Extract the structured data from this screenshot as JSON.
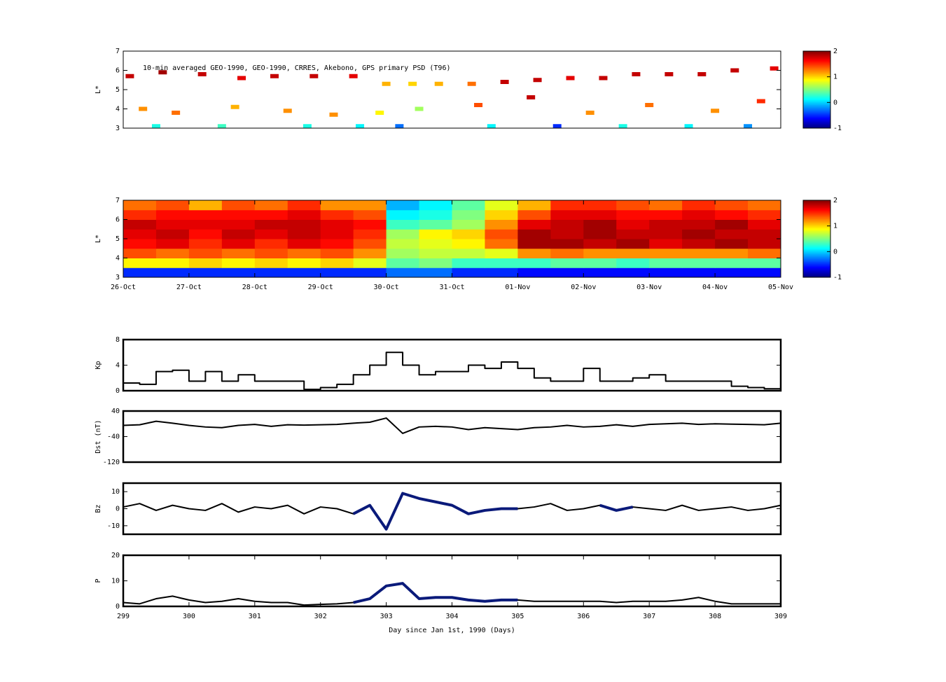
{
  "chart_data": [
    {
      "type": "scatter",
      "title": "10-min averaged GEO-1990, GEO-1990, CRRES, Akebono, GPS  primary PSD (T96)",
      "ylabel": "L*",
      "xlim": [
        299,
        309
      ],
      "ylim": [
        3,
        7
      ],
      "yticks": [
        3,
        4,
        5,
        6,
        7
      ],
      "colormap": "jet",
      "zlim": [
        -1,
        2
      ],
      "zticks": [
        -1,
        0,
        1,
        2
      ],
      "x": [
        299.1,
        299.6,
        300.2,
        300.8,
        301.3,
        301.9,
        302.5,
        303.0,
        303.4,
        303.8,
        304.3,
        304.8,
        305.3,
        305.8,
        306.3,
        306.8,
        307.3,
        307.8,
        308.3,
        308.9,
        299.3,
        299.8,
        300.7,
        301.5,
        302.2,
        302.9,
        303.5,
        304.4,
        305.2,
        306.1,
        307.0,
        308.0,
        308.7,
        299.5,
        300.5,
        301.8,
        302.6,
        303.2,
        304.6,
        305.6,
        306.6,
        307.6,
        308.5
      ],
      "y": [
        5.7,
        5.9,
        5.8,
        5.6,
        5.7,
        5.7,
        5.7,
        5.3,
        5.3,
        5.3,
        5.3,
        5.4,
        5.5,
        5.6,
        5.6,
        5.8,
        5.8,
        5.8,
        6.0,
        6.1,
        4.0,
        3.8,
        4.1,
        3.9,
        3.7,
        3.8,
        4.0,
        4.2,
        4.6,
        3.8,
        4.2,
        3.9,
        4.4,
        3.1,
        3.1,
        3.1,
        3.1,
        3.1,
        3.1,
        3.1,
        3.1,
        3.1,
        3.1
      ],
      "values": [
        1.8,
        1.9,
        1.8,
        1.7,
        1.8,
        1.8,
        1.7,
        1.1,
        1.0,
        1.1,
        1.3,
        1.8,
        1.8,
        1.7,
        1.8,
        1.8,
        1.8,
        1.8,
        1.8,
        1.7,
        1.2,
        1.3,
        1.1,
        1.2,
        1.2,
        0.9,
        0.6,
        1.4,
        1.8,
        1.2,
        1.3,
        1.2,
        1.5,
        0.2,
        0.3,
        0.2,
        0.1,
        -0.3,
        0.1,
        -0.5,
        0.2,
        0.1,
        -0.2
      ]
    },
    {
      "type": "heatmap",
      "ylabel": "L*",
      "xlim": [
        299,
        309
      ],
      "ylim": [
        3,
        7
      ],
      "yticks": [
        3,
        4,
        5,
        6,
        7
      ],
      "colormap": "jet",
      "zlim": [
        -1,
        2
      ],
      "zticks": [
        -1,
        0,
        1,
        2
      ],
      "xticks": [
        {
          "value": 299,
          "label": "26-Oct"
        },
        {
          "value": 300,
          "label": "27-Oct"
        },
        {
          "value": 301,
          "label": "28-Oct"
        },
        {
          "value": 302,
          "label": "29-Oct"
        },
        {
          "value": 303,
          "label": "30-Oct"
        },
        {
          "value": 304,
          "label": "31-Oct"
        },
        {
          "value": 305,
          "label": "01-Nov"
        },
        {
          "value": 306,
          "label": "02-Nov"
        },
        {
          "value": 307,
          "label": "03-Nov"
        },
        {
          "value": 308,
          "label": "04-Nov"
        },
        {
          "value": 309,
          "label": "05-Nov"
        }
      ],
      "xbins": [
        299,
        299.5,
        300,
        300.5,
        301,
        301.5,
        302,
        302.5,
        303,
        303.5,
        304,
        304.5,
        305,
        305.5,
        306,
        306.5,
        307,
        307.5,
        308,
        308.5,
        309
      ],
      "ybins": [
        3,
        3.5,
        4,
        4.5,
        5,
        5.5,
        6,
        6.5,
        7
      ],
      "z": [
        [
          -0.5,
          -0.5,
          -0.5,
          -0.5,
          -0.5,
          -0.5,
          -0.5,
          -0.5,
          -0.3,
          -0.3,
          -0.5,
          -0.5,
          -0.6,
          -0.6,
          -0.6,
          -0.6,
          -0.6,
          -0.6,
          -0.6,
          -0.6
        ],
        [
          0.9,
          0.9,
          1.0,
          0.9,
          1.0,
          0.9,
          1.0,
          0.8,
          0.4,
          0.5,
          0.3,
          0.3,
          0.3,
          0.4,
          0.4,
          0.3,
          0.4,
          0.4,
          0.4,
          0.4
        ],
        [
          1.4,
          1.3,
          1.4,
          1.3,
          1.4,
          1.3,
          1.4,
          1.2,
          0.6,
          0.7,
          0.7,
          0.8,
          1.2,
          1.3,
          1.2,
          1.2,
          1.2,
          1.2,
          1.2,
          1.3
        ],
        [
          1.6,
          1.7,
          1.5,
          1.7,
          1.5,
          1.7,
          1.6,
          1.4,
          0.7,
          0.8,
          0.9,
          1.3,
          1.9,
          1.9,
          1.8,
          1.9,
          1.7,
          1.8,
          1.9,
          1.8
        ],
        [
          1.7,
          1.8,
          1.6,
          1.8,
          1.7,
          1.8,
          1.7,
          1.5,
          0.6,
          0.9,
          1.0,
          1.4,
          1.9,
          1.8,
          1.9,
          1.8,
          1.8,
          1.9,
          1.8,
          1.8
        ],
        [
          1.8,
          1.7,
          1.7,
          1.7,
          1.8,
          1.8,
          1.7,
          1.6,
          0.3,
          0.4,
          0.6,
          1.2,
          1.7,
          1.8,
          1.9,
          1.7,
          1.8,
          1.8,
          1.9,
          1.7
        ],
        [
          1.5,
          1.6,
          1.6,
          1.6,
          1.6,
          1.7,
          1.5,
          1.4,
          0.1,
          0.2,
          0.5,
          1.0,
          1.4,
          1.7,
          1.7,
          1.6,
          1.6,
          1.7,
          1.6,
          1.5
        ],
        [
          1.3,
          1.4,
          1.1,
          1.4,
          1.3,
          1.5,
          1.2,
          1.2,
          -0.1,
          0.1,
          0.4,
          0.8,
          1.1,
          1.5,
          1.5,
          1.4,
          1.3,
          1.5,
          1.4,
          1.3
        ]
      ]
    },
    {
      "type": "line",
      "ylabel": "Kp",
      "xlim": [
        299,
        309
      ],
      "ylim": [
        0,
        8
      ],
      "yticks": [
        0,
        4,
        8
      ],
      "step": true,
      "x": [
        299,
        299.25,
        299.5,
        299.75,
        300,
        300.25,
        300.5,
        300.75,
        301,
        301.25,
        301.5,
        301.75,
        302,
        302.25,
        302.5,
        302.75,
        303,
        303.25,
        303.5,
        303.75,
        304,
        304.25,
        304.5,
        304.75,
        305,
        305.25,
        305.5,
        305.75,
        306,
        306.25,
        306.5,
        306.75,
        307,
        307.25,
        307.5,
        307.75,
        308,
        308.25,
        308.5,
        308.75,
        309
      ],
      "series": [
        {
          "color": "#000000",
          "values": [
            1.2,
            1,
            3,
            3.2,
            1.5,
            3,
            1.5,
            2.5,
            1.5,
            1.5,
            1.5,
            0.2,
            0.5,
            1,
            2.5,
            4,
            6,
            4,
            2.5,
            3,
            3,
            4,
            3.5,
            4.5,
            3.5,
            2,
            1.5,
            1.5,
            3.5,
            1.5,
            1.5,
            2,
            2.5,
            1.5,
            1.5,
            1.5,
            1.5,
            0.7,
            0.5,
            0.3,
            0.3
          ]
        }
      ]
    },
    {
      "type": "line",
      "ylabel": "Dst (nT)",
      "xlim": [
        299,
        309
      ],
      "ylim": [
        -120,
        40
      ],
      "yticks": [
        -120,
        -40,
        40
      ],
      "x": [
        299,
        299.25,
        299.5,
        299.75,
        300,
        300.25,
        300.5,
        300.75,
        301,
        301.25,
        301.5,
        301.75,
        302,
        302.25,
        302.5,
        302.75,
        303,
        303.25,
        303.5,
        303.75,
        304,
        304.25,
        304.5,
        304.75,
        305,
        305.25,
        305.5,
        305.75,
        306,
        306.25,
        306.5,
        306.75,
        307,
        307.25,
        307.5,
        307.75,
        308,
        308.25,
        308.5,
        308.75,
        309
      ],
      "series": [
        {
          "color": "#000000",
          "values": [
            -5,
            -3,
            8,
            2,
            -5,
            -10,
            -12,
            -5,
            -2,
            -8,
            -3,
            -4,
            -3,
            -2,
            2,
            5,
            18,
            -30,
            -10,
            -8,
            -10,
            -18,
            -12,
            -15,
            -18,
            -12,
            -10,
            -5,
            -10,
            -8,
            -3,
            -8,
            -2,
            0,
            2,
            -2,
            0,
            -1,
            -2,
            -3,
            2
          ]
        }
      ]
    },
    {
      "type": "line",
      "ylabel": "Bz",
      "xlim": [
        299,
        309
      ],
      "ylim": [
        -15,
        15
      ],
      "yticks": [
        -10,
        0,
        10
      ],
      "x": [
        299,
        299.25,
        299.5,
        299.75,
        300,
        300.25,
        300.5,
        300.75,
        301,
        301.25,
        301.5,
        301.75,
        302,
        302.25,
        302.5,
        302.75,
        303,
        303.25,
        303.5,
        303.75,
        304,
        304.25,
        304.5,
        304.75,
        305,
        305.25,
        305.5,
        305.75,
        306,
        306.25,
        306.5,
        306.75,
        307,
        307.25,
        307.5,
        307.75,
        308,
        308.25,
        308.5,
        308.75,
        309
      ],
      "series": [
        {
          "color": "#000000",
          "values": [
            1,
            3,
            -1,
            2,
            0,
            -1,
            3,
            -2,
            1,
            0,
            2,
            -3,
            1,
            0,
            -3,
            2,
            -12,
            9,
            6,
            4,
            2,
            -3,
            -1,
            0,
            0,
            1,
            3,
            -1,
            0,
            2,
            -1,
            1,
            0,
            -1,
            2,
            -1,
            0,
            1,
            -1,
            0,
            2
          ]
        },
        {
          "color": "#0a1a7a",
          "values": [
            null,
            null,
            null,
            null,
            null,
            null,
            null,
            null,
            null,
            null,
            null,
            null,
            null,
            null,
            -3,
            2,
            -12,
            9,
            6,
            4,
            2,
            -3,
            -1,
            0,
            0,
            null,
            null,
            null,
            null,
            2,
            -1,
            1,
            null,
            null,
            null,
            null,
            null,
            null,
            null,
            null,
            null
          ]
        }
      ]
    },
    {
      "type": "line",
      "ylabel": "P",
      "xlabel": "Day since Jan 1st, 1990 (Days)",
      "xlim": [
        299,
        309
      ],
      "ylim": [
        0,
        20
      ],
      "yticks": [
        0,
        10,
        20
      ],
      "xticks": [
        299,
        300,
        301,
        302,
        303,
        304,
        305,
        306,
        307,
        308,
        309
      ],
      "x": [
        299,
        299.25,
        299.5,
        299.75,
        300,
        300.25,
        300.5,
        300.75,
        301,
        301.25,
        301.5,
        301.75,
        302,
        302.25,
        302.5,
        302.75,
        303,
        303.25,
        303.5,
        303.75,
        304,
        304.25,
        304.5,
        304.75,
        305,
        305.25,
        305.5,
        305.75,
        306,
        306.25,
        306.5,
        306.75,
        307,
        307.25,
        307.5,
        307.75,
        308,
        308.25,
        308.5,
        308.75,
        309
      ],
      "series": [
        {
          "color": "#000000",
          "values": [
            1.5,
            1,
            3,
            4,
            2.5,
            1.5,
            2,
            3,
            2,
            1.5,
            1.5,
            0.5,
            0.8,
            1,
            1.5,
            3,
            8,
            9,
            3,
            3.5,
            3.5,
            2.5,
            2,
            2.5,
            2.5,
            2,
            2,
            2,
            2,
            2,
            1.5,
            2,
            2,
            2,
            2.5,
            3.5,
            2,
            1,
            1,
            1,
            1
          ]
        },
        {
          "color": "#0a1a7a",
          "values": [
            null,
            null,
            null,
            null,
            null,
            null,
            null,
            null,
            null,
            null,
            null,
            null,
            null,
            null,
            1.5,
            3,
            8,
            9,
            3,
            3.5,
            3.5,
            2.5,
            2,
            2.5,
            2.5,
            null,
            null,
            null,
            null,
            null,
            null,
            null,
            null,
            null,
            null,
            null,
            null,
            null,
            null,
            null,
            null
          ]
        }
      ]
    }
  ]
}
